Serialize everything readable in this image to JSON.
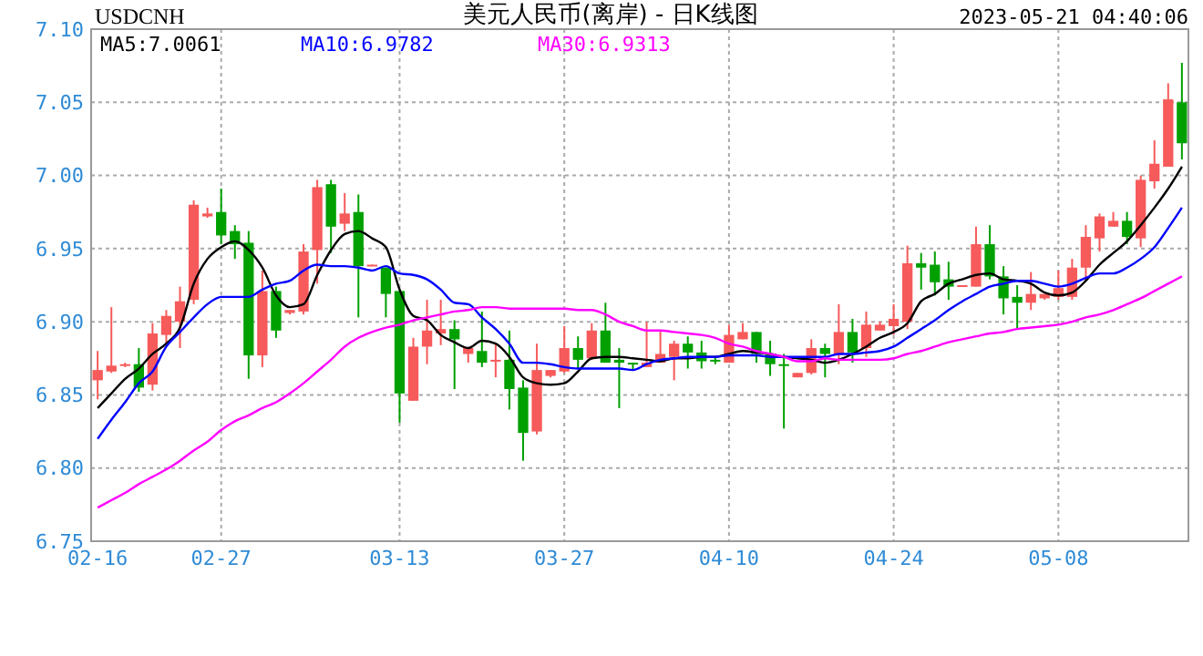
{
  "chart_data": {
    "type": "candlestick",
    "title": "美元人民币(离岸) - 日K线图",
    "subtitle": "USDCNH",
    "annotations": [
      "2023-05-21 04:40:06"
    ],
    "categories": [
      "02-16",
      null,
      null,
      null,
      null,
      null,
      null,
      null,
      null,
      "02-27",
      null,
      null,
      null,
      null,
      null,
      null,
      null,
      null,
      null,
      null,
      null,
      null,
      "03-13",
      null,
      null,
      null,
      null,
      null,
      null,
      null,
      null,
      null,
      null,
      null,
      "03-27",
      null,
      null,
      null,
      null,
      null,
      null,
      null,
      null,
      null,
      null,
      null,
      "04-10",
      null,
      null,
      null,
      null,
      null,
      null,
      null,
      null,
      null,
      null,
      null,
      "04-24",
      null,
      null,
      null,
      null,
      null,
      null,
      null,
      null,
      null,
      null,
      null,
      "05-08",
      null,
      null,
      null,
      null,
      null,
      null,
      null,
      null,
      null
    ],
    "ohlc": [
      [
        6.86,
        6.88,
        6.847,
        6.867
      ],
      [
        6.866,
        6.91,
        6.865,
        6.87
      ],
      [
        6.87,
        6.872,
        6.869,
        6.871
      ],
      [
        6.871,
        6.882,
        6.852,
        6.855
      ],
      [
        6.857,
        6.899,
        6.853,
        6.892
      ],
      [
        6.891,
        6.908,
        6.885,
        6.904
      ],
      [
        6.9,
        6.924,
        6.882,
        6.914
      ],
      [
        6.915,
        6.983,
        6.912,
        6.98
      ],
      [
        6.972,
        6.978,
        6.971,
        6.974
      ],
      [
        6.975,
        6.991,
        6.953,
        6.959
      ],
      [
        6.962,
        6.966,
        6.943,
        6.953
      ],
      [
        6.954,
        6.962,
        6.861,
        6.877
      ],
      [
        6.877,
        6.935,
        6.869,
        6.921
      ],
      [
        6.921,
        6.924,
        6.889,
        6.894
      ],
      [
        6.906,
        6.908,
        6.905,
        6.908
      ],
      [
        6.907,
        6.953,
        6.905,
        6.948
      ],
      [
        6.949,
        6.997,
        6.926,
        6.992
      ],
      [
        6.994,
        6.997,
        6.947,
        6.965
      ],
      [
        6.967,
        6.988,
        6.962,
        6.974
      ],
      [
        6.975,
        6.987,
        6.903,
        6.938
      ],
      [
        6.938,
        6.939,
        6.938,
        6.939
      ],
      [
        6.937,
        6.937,
        6.903,
        6.919
      ],
      [
        6.921,
        6.921,
        6.831,
        6.851
      ],
      [
        6.846,
        6.889,
        6.846,
        6.883
      ],
      [
        6.883,
        6.915,
        6.871,
        6.894
      ],
      [
        6.892,
        6.915,
        6.884,
        6.895
      ],
      [
        6.895,
        6.901,
        6.854,
        6.888
      ],
      [
        6.878,
        6.882,
        6.872,
        6.882
      ],
      [
        6.88,
        6.907,
        6.869,
        6.872
      ],
      [
        6.873,
        6.885,
        6.862,
        6.874
      ],
      [
        6.874,
        6.894,
        6.84,
        6.854
      ],
      [
        6.855,
        6.86,
        6.805,
        6.824
      ],
      [
        6.825,
        6.885,
        6.823,
        6.867
      ],
      [
        6.863,
        6.867,
        6.862,
        6.867
      ],
      [
        6.866,
        6.897,
        6.865,
        6.882
      ],
      [
        6.882,
        6.89,
        6.868,
        6.874
      ],
      [
        6.875,
        6.899,
        6.874,
        6.894
      ],
      [
        6.894,
        6.913,
        6.872,
        6.872
      ],
      [
        6.874,
        6.882,
        6.841,
        6.872
      ],
      [
        6.872,
        6.872,
        6.867,
        6.871
      ],
      [
        6.869,
        6.9,
        6.869,
        6.872
      ],
      [
        6.872,
        6.894,
        6.872,
        6.878
      ],
      [
        6.876,
        6.887,
        6.86,
        6.885
      ],
      [
        6.885,
        6.89,
        6.868,
        6.879
      ],
      [
        6.879,
        6.887,
        6.868,
        6.873
      ],
      [
        6.874,
        6.876,
        6.871,
        6.873
      ],
      [
        6.872,
        6.898,
        6.872,
        6.891
      ],
      [
        6.888,
        6.899,
        6.888,
        6.893
      ],
      [
        6.893,
        6.893,
        6.872,
        6.878
      ],
      [
        6.878,
        6.887,
        6.863,
        6.871
      ],
      [
        6.871,
        6.878,
        6.827,
        6.87
      ],
      [
        6.862,
        6.865,
        6.862,
        6.865
      ],
      [
        6.865,
        6.888,
        6.864,
        6.882
      ],
      [
        6.882,
        6.885,
        6.862,
        6.878
      ],
      [
        6.878,
        6.912,
        6.871,
        6.893
      ],
      [
        6.893,
        6.902,
        6.872,
        6.879
      ],
      [
        6.882,
        6.907,
        6.876,
        6.898
      ],
      [
        6.894,
        6.9,
        6.894,
        6.898
      ],
      [
        6.897,
        6.912,
        6.891,
        6.902
      ],
      [
        6.9,
        6.952,
        6.895,
        6.94
      ],
      [
        6.94,
        6.947,
        6.922,
        6.937
      ],
      [
        6.939,
        6.948,
        6.918,
        6.927
      ],
      [
        6.929,
        6.941,
        6.915,
        6.924
      ],
      [
        6.924,
        6.925,
        6.924,
        6.925
      ],
      [
        6.924,
        6.965,
        6.924,
        6.953
      ],
      [
        6.953,
        6.966,
        6.929,
        6.931
      ],
      [
        6.931,
        6.938,
        6.905,
        6.916
      ],
      [
        6.917,
        6.925,
        6.895,
        6.913
      ],
      [
        6.913,
        6.934,
        6.908,
        6.919
      ],
      [
        6.916,
        6.919,
        6.915,
        6.919
      ],
      [
        6.917,
        6.935,
        6.915,
        6.923
      ],
      [
        6.917,
        6.943,
        6.915,
        6.937
      ],
      [
        6.937,
        6.966,
        6.928,
        6.958
      ],
      [
        6.957,
        6.974,
        6.948,
        6.972
      ],
      [
        6.965,
        6.975,
        6.965,
        6.969
      ],
      [
        6.969,
        6.975,
        6.953,
        6.958
      ],
      [
        6.957,
        7.0,
        6.951,
        6.997
      ],
      [
        6.996,
        7.024,
        6.991,
        7.008
      ],
      [
        7.006,
        7.063,
        7.006,
        7.052
      ],
      [
        7.05,
        7.077,
        7.011,
        7.022
      ]
    ],
    "colors": [
      "#f65a5a",
      "#f65a5a",
      "#f65a5a",
      "#00a000",
      "#f65a5a",
      "#f65a5a",
      "#f65a5a",
      "#f65a5a",
      "#f65a5a",
      "#00a000",
      "#00a000",
      "#00a000",
      "#f65a5a",
      "#00a000",
      "#f65a5a",
      "#f65a5a",
      "#f65a5a",
      "#00a000",
      "#f65a5a",
      "#00a000",
      "#f65a5a",
      "#00a000",
      "#00a000",
      "#f65a5a",
      "#f65a5a",
      "#f65a5a",
      "#00a000",
      "#f65a5a",
      "#00a000",
      "#f65a5a",
      "#00a000",
      "#00a000",
      "#f65a5a",
      "#f65a5a",
      "#f65a5a",
      "#00a000",
      "#f65a5a",
      "#00a000",
      "#00a000",
      "#00a000",
      "#f65a5a",
      "#f65a5a",
      "#f65a5a",
      "#00a000",
      "#00a000",
      "#00a000",
      "#f65a5a",
      "#f65a5a",
      "#00a000",
      "#00a000",
      "#00a000",
      "#f65a5a",
      "#f65a5a",
      "#00a000",
      "#f65a5a",
      "#00a000",
      "#f65a5a",
      "#f65a5a",
      "#f65a5a",
      "#f65a5a",
      "#00a000",
      "#00a000",
      "#00a000",
      "#f65a5a",
      "#f65a5a",
      "#00a000",
      "#00a000",
      "#00a000",
      "#f65a5a",
      "#f65a5a",
      "#f65a5a",
      "#f65a5a",
      "#f65a5a",
      "#f65a5a",
      "#f65a5a",
      "#00a000",
      "#f65a5a",
      "#f65a5a",
      "#f65a5a",
      "#00a000"
    ],
    "series": [
      {
        "name": "MA5:7.0061",
        "type": "line",
        "color": "#000000",
        "values": [
          6.841,
          6.851,
          6.861,
          6.868,
          6.878,
          6.885,
          6.896,
          6.926,
          6.943,
          6.951,
          6.955,
          6.949,
          6.937,
          6.918,
          6.91,
          6.912,
          6.932,
          6.949,
          6.96,
          6.962,
          6.957,
          6.951,
          6.922,
          6.904,
          6.901,
          6.891,
          6.886,
          6.882,
          6.887,
          6.885,
          6.876,
          6.862,
          6.858,
          6.857,
          6.858,
          6.866,
          6.875,
          6.876,
          6.876,
          6.875,
          6.874,
          6.873,
          6.875,
          6.875,
          6.876,
          6.876,
          6.878,
          6.88,
          6.879,
          6.878,
          6.876,
          6.875,
          6.874,
          6.872,
          6.874,
          6.878,
          6.883,
          6.889,
          6.893,
          6.899,
          6.914,
          6.919,
          6.926,
          6.929,
          6.932,
          6.933,
          6.929,
          6.928,
          6.926,
          6.92,
          6.918,
          6.92,
          6.928,
          6.939,
          6.947,
          6.955,
          6.966,
          6.978,
          6.991,
          7.006
        ]
      },
      {
        "name": "MA10:6.9782",
        "type": "line",
        "color": "#0000ff",
        "values": [
          6.82,
          6.833,
          6.845,
          6.858,
          6.866,
          6.883,
          6.893,
          6.903,
          6.912,
          6.917,
          6.917,
          6.917,
          6.922,
          6.926,
          6.928,
          6.935,
          6.939,
          6.938,
          6.938,
          6.937,
          6.935,
          6.938,
          6.933,
          6.932,
          6.929,
          6.922,
          6.913,
          6.912,
          6.903,
          6.895,
          6.885,
          6.872,
          6.872,
          6.871,
          6.869,
          6.868,
          6.868,
          6.868,
          6.868,
          6.867,
          6.871,
          6.874,
          6.875,
          6.876,
          6.876,
          6.876,
          6.877,
          6.877,
          6.877,
          6.876,
          6.876,
          6.876,
          6.876,
          6.876,
          6.878,
          6.878,
          6.879,
          6.88,
          6.883,
          6.889,
          6.895,
          6.901,
          6.908,
          6.914,
          6.919,
          6.924,
          6.926,
          6.928,
          6.928,
          6.926,
          6.924,
          6.926,
          6.93,
          6.933,
          6.933,
          6.937,
          6.943,
          6.951,
          6.964,
          6.978
        ]
      },
      {
        "name": "MA30:6.9313",
        "type": "line",
        "color": "#ff00ff",
        "values": [
          6.773,
          6.778,
          6.783,
          6.789,
          6.794,
          6.799,
          6.805,
          6.812,
          6.818,
          6.826,
          6.832,
          6.836,
          6.841,
          6.845,
          6.851,
          6.858,
          6.866,
          6.874,
          6.883,
          6.889,
          6.893,
          6.896,
          6.898,
          6.901,
          6.903,
          6.905,
          6.907,
          6.908,
          6.91,
          6.91,
          6.909,
          6.909,
          6.909,
          6.909,
          6.909,
          6.908,
          6.908,
          6.905,
          6.9,
          6.897,
          6.894,
          6.894,
          6.893,
          6.892,
          6.891,
          6.889,
          6.885,
          6.883,
          6.88,
          6.878,
          6.876,
          6.873,
          6.873,
          6.875,
          6.874,
          6.874,
          6.874,
          6.874,
          6.875,
          6.878,
          6.88,
          6.883,
          6.886,
          6.888,
          6.89,
          6.892,
          6.893,
          6.895,
          6.896,
          6.897,
          6.898,
          6.9,
          6.903,
          6.905,
          6.908,
          6.912,
          6.916,
          6.921,
          6.926,
          6.931
        ]
      }
    ],
    "ylim": [
      6.75,
      7.1
    ],
    "yticks": [
      {
        "value": 6.75,
        "label": "6.75"
      },
      {
        "value": 6.8,
        "label": "6.80"
      },
      {
        "value": 6.85,
        "label": "6.85"
      },
      {
        "value": 6.9,
        "label": "6.90"
      },
      {
        "value": 6.95,
        "label": "6.95"
      },
      {
        "value": 7.0,
        "label": "7.00"
      },
      {
        "value": 7.05,
        "label": "7.05"
      },
      {
        "value": 7.1,
        "label": "7.10"
      }
    ],
    "grid": true,
    "legend": "top left"
  }
}
